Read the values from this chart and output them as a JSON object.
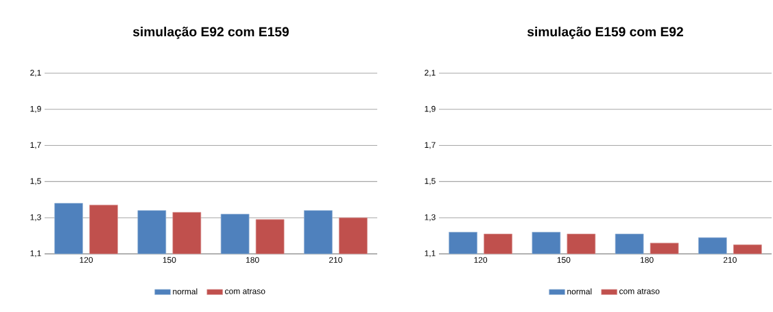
{
  "chart_data": [
    {
      "type": "bar",
      "title": "simulação E92 com E159",
      "categories": [
        "120",
        "150",
        "180",
        "210"
      ],
      "series": [
        {
          "name": "normal",
          "color": "#4f81bd",
          "values": [
            1.38,
            1.34,
            1.32,
            1.34
          ]
        },
        {
          "name": "com atraso",
          "color": "#c0504d",
          "values": [
            1.37,
            1.33,
            1.29,
            1.3
          ]
        }
      ],
      "ylim": [
        1.1,
        2.1
      ],
      "yticks": [
        {
          "value": 1.1,
          "label": "1,1"
        },
        {
          "value": 1.3,
          "label": "1,3"
        },
        {
          "value": 1.5,
          "label": "1,5"
        },
        {
          "value": 1.7,
          "label": "1,7"
        },
        {
          "value": 1.9,
          "label": "1,9"
        },
        {
          "value": 2.1,
          "label": "2,1"
        }
      ],
      "grid": "y",
      "legend": "bottom"
    },
    {
      "type": "bar",
      "title": "simulação E159 com E92",
      "categories": [
        "120",
        "150",
        "180",
        "210"
      ],
      "series": [
        {
          "name": "normal",
          "color": "#4f81bd",
          "values": [
            1.22,
            1.22,
            1.21,
            1.19
          ]
        },
        {
          "name": "com atraso",
          "color": "#c0504d",
          "values": [
            1.21,
            1.21,
            1.16,
            1.15
          ]
        }
      ],
      "ylim": [
        1.1,
        2.1
      ],
      "yticks": [
        {
          "value": 1.1,
          "label": "1,1"
        },
        {
          "value": 1.3,
          "label": "1,3"
        },
        {
          "value": 1.5,
          "label": "1,5"
        },
        {
          "value": 1.7,
          "label": "1,7"
        },
        {
          "value": 1.9,
          "label": "1,9"
        },
        {
          "value": 2.1,
          "label": "2,1"
        }
      ],
      "grid": "y",
      "legend": "bottom"
    }
  ]
}
